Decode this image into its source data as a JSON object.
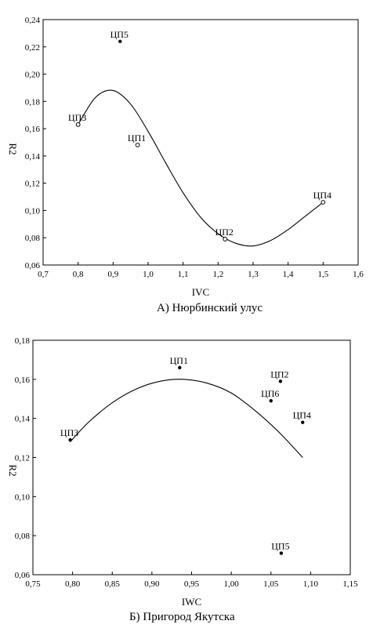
{
  "chart_data": [
    {
      "type": "scatter",
      "xlabel": "IVC",
      "ylabel": "R2",
      "xlim": [
        0.7,
        1.6
      ],
      "ylim": [
        0.06,
        0.24
      ],
      "x_ticks": [
        "0,7",
        "0,8",
        "0,9",
        "1,0",
        "1,1",
        "1,2",
        "1,3",
        "1,4",
        "1,5",
        "1,6"
      ],
      "y_ticks": [
        "0,06",
        "0,08",
        "0,10",
        "0,12",
        "0,14",
        "0,16",
        "0,18",
        "0,20",
        "0,22",
        "0,24"
      ],
      "points": [
        {
          "label": "ЦП3",
          "x": 0.8,
          "y": 0.163,
          "marker": "open"
        },
        {
          "label": "ЦП5",
          "x": 0.92,
          "y": 0.224,
          "marker": "dot"
        },
        {
          "label": "ЦП1",
          "x": 0.97,
          "y": 0.148,
          "marker": "open"
        },
        {
          "label": "ЦП2",
          "x": 1.22,
          "y": 0.079,
          "marker": "open"
        },
        {
          "label": "ЦП4",
          "x": 1.5,
          "y": 0.106,
          "marker": "open"
        }
      ],
      "fit_curve": {
        "x": [
          0.8,
          0.85,
          0.9,
          0.95,
          1.0,
          1.05,
          1.1,
          1.15,
          1.2,
          1.25,
          1.3,
          1.35,
          1.4,
          1.45,
          1.5
        ],
        "y": [
          0.163,
          0.183,
          0.188,
          0.178,
          0.158,
          0.135,
          0.113,
          0.095,
          0.083,
          0.076,
          0.074,
          0.078,
          0.086,
          0.096,
          0.106
        ]
      },
      "caption": "А) Нюрбинский улус"
    },
    {
      "type": "scatter",
      "xlabel": "IWC",
      "ylabel": "R2",
      "xlim": [
        0.75,
        1.15
      ],
      "ylim": [
        0.06,
        0.18
      ],
      "x_ticks": [
        "0,75",
        "0,80",
        "0,85",
        "0,90",
        "0,95",
        "1,00",
        "1,05",
        "1,10",
        "1,15"
      ],
      "y_ticks": [
        "0,06",
        "0,08",
        "0,10",
        "0,12",
        "0,14",
        "0,16",
        "0,18"
      ],
      "points": [
        {
          "label": "ЦП3",
          "x": 0.797,
          "y": 0.129,
          "marker": "dot"
        },
        {
          "label": "ЦП1",
          "x": 0.935,
          "y": 0.166,
          "marker": "dot"
        },
        {
          "label": "ЦП2",
          "x": 1.062,
          "y": 0.159,
          "marker": "dot"
        },
        {
          "label": "ЦП6",
          "x": 1.05,
          "y": 0.149,
          "marker": "dot"
        },
        {
          "label": "ЦП4",
          "x": 1.09,
          "y": 0.138,
          "marker": "dot"
        },
        {
          "label": "ЦП5",
          "x": 1.063,
          "y": 0.071,
          "marker": "dot"
        }
      ],
      "fit_curve": {
        "x": [
          0.797,
          0.82,
          0.85,
          0.88,
          0.91,
          0.94,
          0.97,
          1.0,
          1.03,
          1.06,
          1.09
        ],
        "y": [
          0.128,
          0.138,
          0.148,
          0.155,
          0.159,
          0.16,
          0.158,
          0.153,
          0.144,
          0.133,
          0.12
        ]
      },
      "caption": "Б) Пригород Якутска"
    }
  ]
}
